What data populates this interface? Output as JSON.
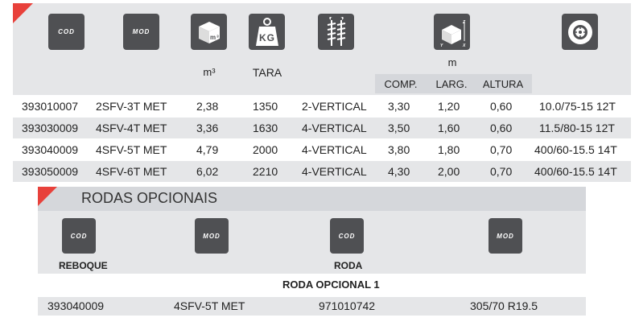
{
  "header": {
    "icons": [
      {
        "name": "cod-icon",
        "text": "COD"
      },
      {
        "name": "mod-icon",
        "text": "MOD"
      },
      {
        "name": "volume-cube-icon",
        "text": "m³"
      },
      {
        "name": "weight-kg-icon",
        "text": "KG"
      },
      {
        "name": "vertical-auger-icon",
        "text": ""
      },
      {
        "name": "dimensions-box-icon",
        "text": ""
      },
      {
        "name": "wheel-icon",
        "text": ""
      }
    ],
    "volume_unit": "m³",
    "tare_label": "TARA",
    "dimension_unit": "m",
    "dimension_columns": [
      "COMP.",
      "LARG.",
      "ALTURA"
    ]
  },
  "rows": [
    [
      "393010007",
      "2SFV-3T MET",
      "2,38",
      "1350",
      "2-VERTICAL",
      "3,30",
      "1,20",
      "0,60",
      "10.0/75-15 12T"
    ],
    [
      "393030009",
      "4SFV-4T MET",
      "3,36",
      "1630",
      "4-VERTICAL",
      "3,50",
      "1,60",
      "0,60",
      "11.5/80-15 12T"
    ],
    [
      "393040009",
      "4SFV-5T MET",
      "4,79",
      "2000",
      "4-VERTICAL",
      "3,80",
      "1,80",
      "0,70",
      "400/60-15.5 14T"
    ],
    [
      "393050009",
      "4SFV-6T MET",
      "6,02",
      "2210",
      "4-VERTICAL",
      "4,30",
      "2,00",
      "0,70",
      "400/60-15.5 14T"
    ]
  ],
  "optional_wheels": {
    "title": "RODAS OPCIONAIS",
    "icons": [
      {
        "text": "COD",
        "label": "REBOQUE"
      },
      {
        "text": "MOD",
        "label": ""
      },
      {
        "text": "COD",
        "label": "RODA"
      },
      {
        "text": "MOD",
        "label": ""
      }
    ],
    "subtitle": "RODA OPCIONAL 1",
    "row": [
      "393040009",
      "4SFV-5T MET",
      "971010742",
      "305/70 R19.5"
    ]
  }
}
